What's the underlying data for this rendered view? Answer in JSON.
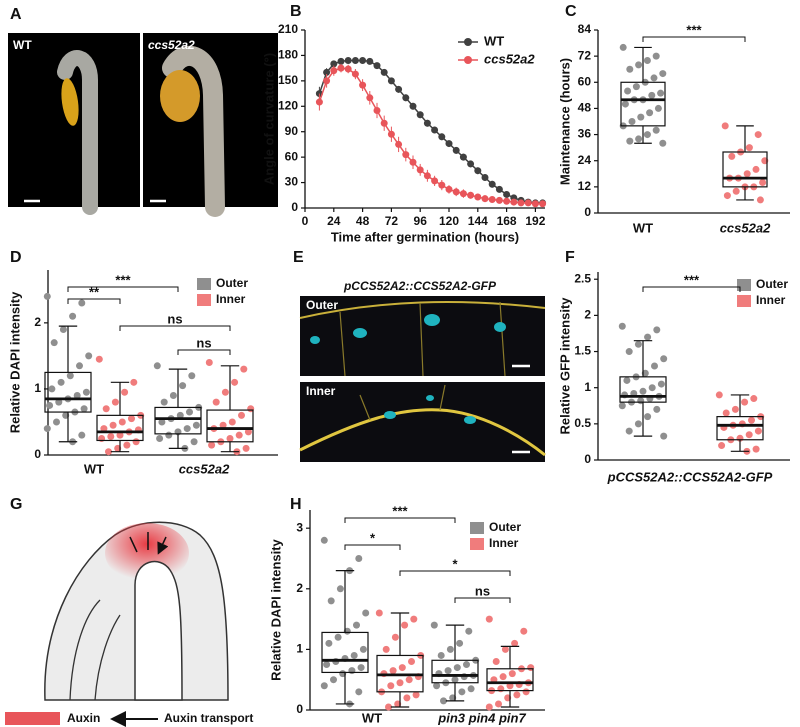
{
  "panel_labels": [
    "A",
    "B",
    "C",
    "D",
    "E",
    "F",
    "G",
    "H"
  ],
  "photos_a": {
    "labels": [
      "WT",
      "ccs52a2"
    ]
  },
  "photos_e": {
    "title": "pCCS52A2::CCS52A2-GFP",
    "labels": [
      "Outer",
      "Inner"
    ]
  },
  "diagram_g": {
    "legend": [
      "Auxin",
      "Auxin transport"
    ]
  },
  "chart_data": [
    {
      "type": "line",
      "xlabel": "Time after germination (hours)",
      "ylabel": "Angle of curvature (°)",
      "x": [
        12,
        18,
        24,
        30,
        36,
        42,
        48,
        54,
        60,
        66,
        72,
        78,
        84,
        90,
        96,
        102,
        108,
        114,
        120,
        126,
        132,
        138,
        144,
        150,
        156,
        162,
        168,
        174,
        180,
        186,
        192,
        198
      ],
      "xlim": [
        0,
        200
      ],
      "xticks": [
        0,
        24,
        48,
        72,
        96,
        120,
        144,
        168,
        192
      ],
      "ylim": [
        0,
        210
      ],
      "yticks": [
        0,
        30,
        60,
        90,
        120,
        150,
        180,
        210
      ],
      "legend": "upper right",
      "series": [
        {
          "name": "WT",
          "color": "#404040",
          "values": [
            135,
            160,
            170,
            173,
            174,
            174,
            174,
            173,
            168,
            160,
            150,
            140,
            130,
            120,
            110,
            100,
            92,
            84,
            76,
            68,
            60,
            52,
            44,
            36,
            28,
            22,
            16,
            12,
            9,
            7,
            6,
            6
          ],
          "errors": [
            8,
            5,
            3,
            2,
            2,
            2,
            2,
            2,
            3,
            3,
            3,
            4,
            4,
            4,
            4,
            4,
            4,
            4,
            4,
            4,
            4,
            4,
            4,
            4,
            4,
            3,
            3,
            3,
            2,
            2,
            2,
            2
          ]
        },
        {
          "name": "ccs52a2",
          "color": "#e8555a",
          "values": [
            125,
            150,
            162,
            165,
            164,
            158,
            145,
            130,
            115,
            100,
            87,
            75,
            63,
            54,
            45,
            38,
            32,
            27,
            22,
            19,
            17,
            15,
            13,
            11,
            10,
            9,
            8,
            7,
            6,
            6,
            5,
            5
          ],
          "errors": [
            10,
            8,
            6,
            5,
            5,
            6,
            7,
            8,
            9,
            9,
            9,
            9,
            8,
            8,
            7,
            7,
            6,
            6,
            5,
            5,
            5,
            4,
            4,
            4,
            3,
            3,
            3,
            3,
            2,
            2,
            2,
            2
          ]
        }
      ]
    },
    {
      "type": "box",
      "ylabel": "Maintenance (hours)",
      "categories": [
        "WT",
        "ccs52a2"
      ],
      "ylim": [
        0,
        84
      ],
      "yticks": [
        0,
        12,
        24,
        36,
        48,
        60,
        72,
        84
      ],
      "annotations": [
        "***"
      ],
      "series": [
        {
          "color": "#8f8f8f",
          "boxes": [
            {
              "min": 32,
              "q1": 40,
              "median": 52,
              "q3": 60,
              "max": 76,
              "points": [
                76,
                72,
                70,
                68,
                66,
                64,
                62,
                60,
                58,
                56,
                55,
                54,
                52,
                52,
                50,
                48,
                46,
                44,
                42,
                40,
                38,
                36,
                34,
                33,
                32
              ]
            },
            null
          ]
        },
        {
          "color": "#f07c7c",
          "boxes": [
            null,
            {
              "min": 6,
              "q1": 12,
              "median": 16,
              "q3": 28,
              "max": 40,
              "points": [
                40,
                36,
                30,
                28,
                26,
                24,
                20,
                18,
                16,
                16,
                14,
                12,
                12,
                10,
                8,
                6
              ]
            }
          ]
        }
      ]
    },
    {
      "type": "box",
      "ylabel": "Relative DAPI intensity",
      "categories": [
        "WT",
        "ccs52a2"
      ],
      "ylim": [
        0,
        2.8
      ],
      "yticks": [
        0,
        1,
        2
      ],
      "annotations": [
        "***",
        "**",
        "ns",
        "ns"
      ],
      "legend": "upper right",
      "series": [
        {
          "name": "Outer",
          "color": "#8f8f8f",
          "boxes": [
            {
              "min": 0.2,
              "q1": 0.65,
              "median": 0.85,
              "q3": 1.25,
              "max": 1.95,
              "points": [
                2.4,
                2.3,
                2.1,
                1.9,
                1.7,
                1.5,
                1.35,
                1.2,
                1.1,
                1.0,
                0.95,
                0.9,
                0.85,
                0.8,
                0.75,
                0.7,
                0.65,
                0.6,
                0.5,
                0.4,
                0.3,
                0.2
              ]
            },
            {
              "min": 0.1,
              "q1": 0.32,
              "median": 0.55,
              "q3": 0.72,
              "max": 1.3,
              "points": [
                1.35,
                1.2,
                1.05,
                0.9,
                0.8,
                0.72,
                0.65,
                0.6,
                0.55,
                0.5,
                0.45,
                0.4,
                0.35,
                0.3,
                0.25,
                0.2,
                0.1
              ]
            }
          ]
        },
        {
          "name": "Inner",
          "color": "#f07c7c",
          "boxes": [
            {
              "min": 0.05,
              "q1": 0.22,
              "median": 0.35,
              "q3": 0.6,
              "max": 1.1,
              "points": [
                1.45,
                1.1,
                0.95,
                0.8,
                0.7,
                0.6,
                0.55,
                0.5,
                0.45,
                0.4,
                0.38,
                0.35,
                0.3,
                0.28,
                0.25,
                0.2,
                0.15,
                0.1,
                0.05
              ]
            },
            {
              "min": 0.05,
              "q1": 0.2,
              "median": 0.4,
              "q3": 0.68,
              "max": 1.35,
              "points": [
                1.4,
                1.3,
                1.1,
                0.95,
                0.8,
                0.7,
                0.6,
                0.5,
                0.45,
                0.4,
                0.35,
                0.3,
                0.25,
                0.2,
                0.15,
                0.1,
                0.05
              ]
            }
          ]
        }
      ]
    },
    {
      "type": "box",
      "ylabel": "Relative GFP intensity",
      "categories": [
        "pCCS52A2::CCS52A2-GFP"
      ],
      "ylim": [
        0,
        2.6
      ],
      "yticks": [
        0,
        0.5,
        1,
        1.5,
        2,
        2.5
      ],
      "annotations": [
        "***"
      ],
      "legend": "upper right",
      "series": [
        {
          "name": "Outer",
          "color": "#8f8f8f",
          "boxes": [
            {
              "min": 0.33,
              "q1": 0.8,
              "median": 0.88,
              "q3": 1.15,
              "max": 1.65,
              "points": [
                1.85,
                1.8,
                1.7,
                1.6,
                1.5,
                1.4,
                1.3,
                1.2,
                1.15,
                1.1,
                1.05,
                1.0,
                0.95,
                0.92,
                0.9,
                0.88,
                0.85,
                0.82,
                0.8,
                0.75,
                0.7,
                0.6,
                0.5,
                0.4,
                0.33
              ]
            }
          ]
        },
        {
          "name": "Inner",
          "color": "#f07c7c",
          "boxes": [
            {
              "min": 0.12,
              "q1": 0.28,
              "median": 0.48,
              "q3": 0.6,
              "max": 0.9,
              "points": [
                0.9,
                0.85,
                0.8,
                0.7,
                0.65,
                0.6,
                0.55,
                0.5,
                0.48,
                0.45,
                0.4,
                0.35,
                0.3,
                0.28,
                0.2,
                0.15,
                0.12
              ]
            }
          ]
        }
      ]
    },
    {
      "type": "box",
      "ylabel": "Relative DAPI intensity",
      "categories": [
        "WT",
        "pin3 pin4 pin7"
      ],
      "ylim": [
        0,
        3.3
      ],
      "yticks": [
        0,
        1,
        2,
        3
      ],
      "annotations": [
        "***",
        "*",
        "*",
        "ns"
      ],
      "legend": "upper right",
      "series": [
        {
          "name": "Outer",
          "color": "#8f8f8f",
          "boxes": [
            {
              "min": 0.1,
              "q1": 0.62,
              "median": 0.82,
              "q3": 1.28,
              "max": 2.3,
              "points": [
                2.8,
                2.5,
                2.3,
                2.0,
                1.8,
                1.6,
                1.4,
                1.3,
                1.2,
                1.1,
                1.0,
                0.9,
                0.85,
                0.8,
                0.75,
                0.7,
                0.65,
                0.6,
                0.5,
                0.4,
                0.3,
                0.1
              ]
            },
            {
              "min": 0.15,
              "q1": 0.45,
              "median": 0.57,
              "q3": 0.82,
              "max": 1.4,
              "points": [
                1.4,
                1.3,
                1.1,
                1.0,
                0.9,
                0.82,
                0.75,
                0.7,
                0.65,
                0.6,
                0.57,
                0.55,
                0.5,
                0.45,
                0.4,
                0.35,
                0.3,
                0.2,
                0.15
              ]
            }
          ]
        },
        {
          "name": "Inner",
          "color": "#f07c7c",
          "boxes": [
            {
              "min": 0.05,
              "q1": 0.3,
              "median": 0.58,
              "q3": 0.9,
              "max": 1.6,
              "points": [
                1.6,
                1.5,
                1.4,
                1.2,
                1.0,
                0.9,
                0.8,
                0.7,
                0.65,
                0.6,
                0.55,
                0.5,
                0.45,
                0.4,
                0.3,
                0.25,
                0.2,
                0.1,
                0.05
              ]
            },
            {
              "min": 0.05,
              "q1": 0.32,
              "median": 0.45,
              "q3": 0.68,
              "max": 1.05,
              "points": [
                1.5,
                1.3,
                1.1,
                1.0,
                0.8,
                0.7,
                0.68,
                0.6,
                0.55,
                0.5,
                0.45,
                0.42,
                0.4,
                0.35,
                0.32,
                0.3,
                0.25,
                0.2,
                0.1,
                0.05
              ]
            }
          ]
        }
      ]
    }
  ]
}
